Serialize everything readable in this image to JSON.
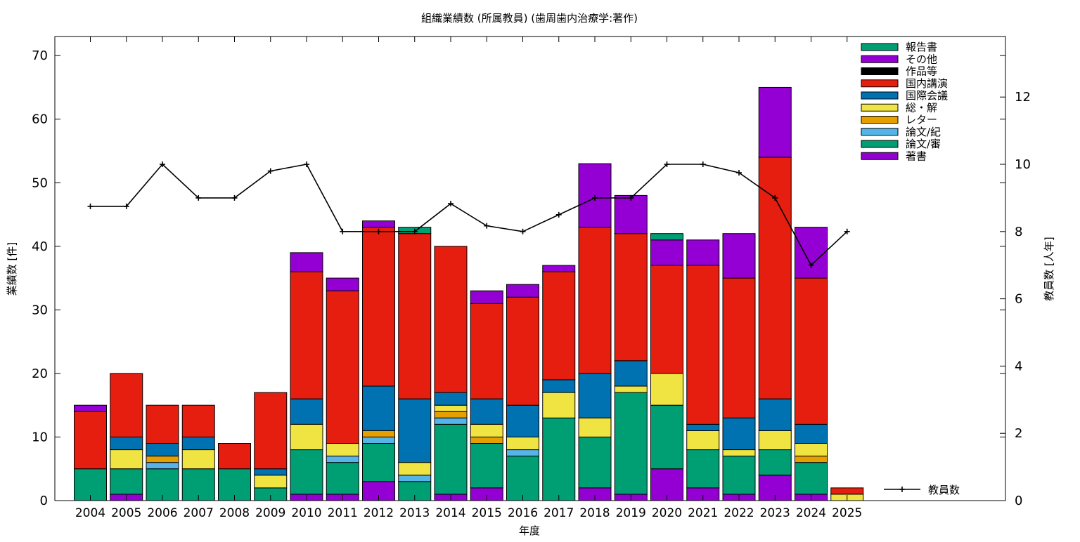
{
  "chart_data": {
    "type": "bar",
    "stacked": true,
    "title": "組織業績数 (所属教員) (歯周歯内治療学:著作)",
    "xlabel": "年度",
    "ylabel": "業績数 [件]",
    "y2label": "教員数 [人年]",
    "ylim": [
      0,
      73
    ],
    "y2lim": [
      0,
      13.8
    ],
    "yticks": [
      0,
      10,
      20,
      30,
      40,
      50,
      60,
      70
    ],
    "y2ticks": [
      0,
      2,
      4,
      6,
      8,
      10,
      12
    ],
    "grid": false,
    "legend_position": "top-right",
    "categories": [
      "2004",
      "2005",
      "2006",
      "2007",
      "2008",
      "2009",
      "2010",
      "2011",
      "2012",
      "2013",
      "2014",
      "2015",
      "2016",
      "2017",
      "2018",
      "2019",
      "2020",
      "2021",
      "2022",
      "2023",
      "2024",
      "2025"
    ],
    "series": [
      {
        "name": "著書",
        "color": "#9400d3",
        "values": [
          0,
          1,
          0,
          0,
          0,
          0,
          1,
          1,
          3,
          0,
          1,
          2,
          0,
          0,
          2,
          1,
          5,
          2,
          1,
          4,
          1,
          0
        ]
      },
      {
        "name": "論文/審",
        "color": "#009e73",
        "values": [
          5,
          4,
          5,
          5,
          5,
          2,
          7,
          5,
          6,
          3,
          11,
          7,
          7,
          13,
          8,
          16,
          10,
          6,
          6,
          4,
          5,
          0
        ]
      },
      {
        "name": "論文/紀",
        "color": "#56b4e9",
        "values": [
          0,
          0,
          1,
          0,
          0,
          0,
          0,
          1,
          1,
          1,
          1,
          0,
          1,
          0,
          0,
          0,
          0,
          0,
          0,
          0,
          0,
          0
        ]
      },
      {
        "name": "レター",
        "color": "#e69f00",
        "values": [
          0,
          0,
          1,
          0,
          0,
          0,
          0,
          0,
          1,
          0,
          1,
          1,
          0,
          0,
          0,
          0,
          0,
          0,
          0,
          0,
          1,
          0
        ]
      },
      {
        "name": "総・解",
        "color": "#f0e442",
        "values": [
          0,
          3,
          0,
          3,
          0,
          2,
          4,
          2,
          0,
          2,
          1,
          2,
          2,
          4,
          3,
          1,
          5,
          3,
          1,
          3,
          2,
          1
        ]
      },
      {
        "name": "国際会議",
        "color": "#0072b2",
        "values": [
          0,
          2,
          2,
          2,
          0,
          1,
          4,
          0,
          7,
          10,
          2,
          4,
          5,
          2,
          7,
          4,
          0,
          1,
          5,
          5,
          3,
          0
        ]
      },
      {
        "name": "国内講演",
        "color": "#e51e10",
        "values": [
          9,
          10,
          6,
          5,
          4,
          12,
          20,
          24,
          25,
          26,
          23,
          15,
          17,
          17,
          23,
          20,
          17,
          25,
          22,
          38,
          23,
          1
        ]
      },
      {
        "name": "作品等",
        "color": "#000000",
        "values": [
          0,
          0,
          0,
          0,
          0,
          0,
          0,
          0,
          0,
          0,
          0,
          0,
          0,
          0,
          0,
          0,
          0,
          0,
          0,
          0,
          0,
          0
        ]
      },
      {
        "name": "その他",
        "color": "#9400d3",
        "values": [
          1,
          0,
          0,
          0,
          0,
          0,
          3,
          2,
          1,
          0,
          0,
          2,
          2,
          1,
          10,
          6,
          4,
          4,
          7,
          11,
          8,
          0
        ]
      },
      {
        "name": "報告書",
        "color": "#009e73",
        "values": [
          0,
          0,
          0,
          0,
          0,
          0,
          0,
          0,
          0,
          1,
          0,
          0,
          0,
          0,
          0,
          0,
          1,
          0,
          0,
          0,
          0,
          0
        ]
      }
    ],
    "line_series": {
      "name": "教員数",
      "color": "#000000",
      "axis": "y2",
      "values": [
        8.75,
        8.75,
        10,
        9,
        9,
        9.8,
        10,
        8,
        8,
        8,
        8.83,
        8.17,
        8,
        8.5,
        9,
        9,
        10,
        10,
        9.75,
        9,
        7,
        8
      ]
    }
  }
}
